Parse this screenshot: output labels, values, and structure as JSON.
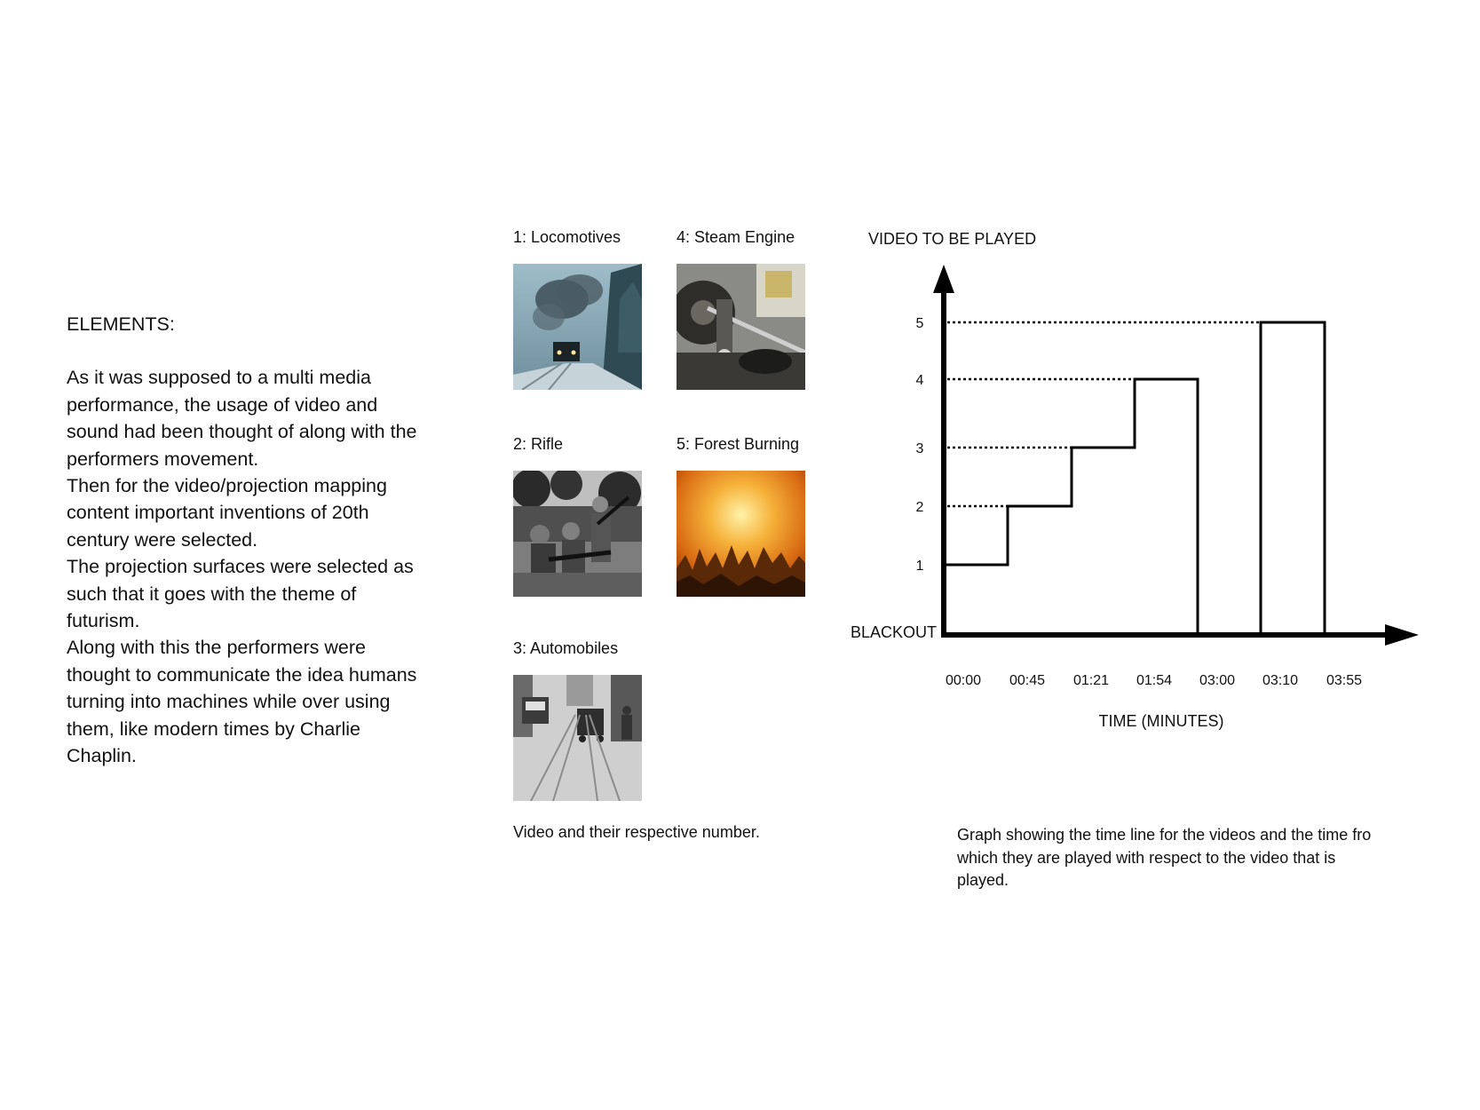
{
  "elements": {
    "heading": "ELEMENTS:",
    "paragraphs": [
      "As it was supposed to a multi media performance, the usage of video and sound had been thought of along with the performers movement.",
      "Then for the video/projection mapping content important inventions of 20th century were selected.",
      "The projection surfaces were selected as such that it goes with the theme of futurism.",
      "Along with this the performers were thought to communicate the idea humans turning into machines while over using them, like modern times by Charlie Chaplin."
    ]
  },
  "videos": [
    {
      "label": "1: Locomotives",
      "icon": "locomotive-photo"
    },
    {
      "label": "2: Rifle",
      "icon": "rifle-soldiers-photo"
    },
    {
      "label": "3: Automobiles",
      "icon": "automobiles-street-photo"
    },
    {
      "label": "4: Steam Engine",
      "icon": "steam-engine-photo"
    },
    {
      "label": "5: Forest Burning",
      "icon": "forest-fire-photo"
    }
  ],
  "videos_caption": "Video and their respective number.",
  "chart_caption": "Graph showing the time line for the videos and the time fro which they are played with respect to the video that is played.",
  "chart_data": {
    "type": "line",
    "ylabel": "VIDEO TO BE PLAYED",
    "xlabel": "TIME (MINUTES)",
    "x_ticks": [
      "00:00",
      "00:45",
      "01:21",
      "01:54",
      "03:00",
      "03:10",
      "03:55"
    ],
    "y_ticks": [
      "1",
      "2",
      "3",
      "4",
      "5"
    ],
    "y_zero_label": "BLACKOUT",
    "ylim": [
      0,
      5
    ],
    "segments": [
      {
        "start": "00:00",
        "end": "00:45",
        "video": 1
      },
      {
        "start": "00:45",
        "end": "01:21",
        "video": 2
      },
      {
        "start": "01:21",
        "end": "01:54",
        "video": 3
      },
      {
        "start": "01:54",
        "end": "03:00",
        "video": 4
      },
      {
        "start": "03:00",
        "end": "03:10",
        "video": 0
      },
      {
        "start": "03:10",
        "end": "03:55",
        "video": 5
      }
    ],
    "guide_lines": true
  }
}
